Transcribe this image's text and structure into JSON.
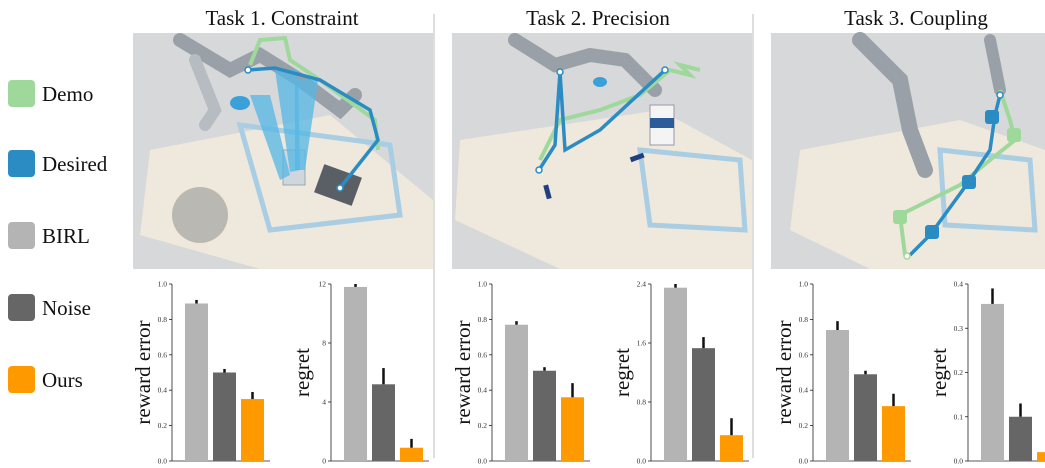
{
  "legend": {
    "items": [
      {
        "label": "Demo",
        "color": "#9fd89b"
      },
      {
        "label": "Desired",
        "color": "#2b8cc4"
      },
      {
        "label": "BIRL",
        "color": "#b4b4b4"
      },
      {
        "label": "Noise",
        "color": "#666666"
      },
      {
        "label": "Ours",
        "color": "#ff9900"
      }
    ]
  },
  "tasks": [
    {
      "title": "Task 1. Constraint",
      "photo_icon": "robot-arm-photo-icon"
    },
    {
      "title": "Task 2. Precision",
      "photo_icon": "robot-arm-photo-icon"
    },
    {
      "title": "Task 3. Coupling",
      "photo_icon": "robot-arm-photo-icon"
    }
  ],
  "chart_data": [
    {
      "type": "bar",
      "task": "Task 1. Constraint",
      "ylabel": "reward error",
      "categories": [
        "BIRL",
        "Noise",
        "Ours"
      ],
      "values": [
        0.89,
        0.5,
        0.35
      ],
      "errors": [
        0.02,
        0.02,
        0.04
      ],
      "ylim": [
        0,
        1.0
      ],
      "ticks": [
        0.0,
        0.2,
        0.4,
        0.6,
        0.8,
        1.0
      ],
      "tick_labels": [
        "0.0",
        "0.2",
        "0.4",
        "0.6",
        "0.8",
        "1.0"
      ]
    },
    {
      "type": "bar",
      "task": "Task 1. Constraint",
      "ylabel": "regret",
      "categories": [
        "BIRL",
        "Noise",
        "Ours"
      ],
      "values": [
        11.8,
        5.2,
        0.9
      ],
      "errors": [
        0.2,
        1.1,
        0.6
      ],
      "ylim": [
        0,
        12
      ],
      "ticks": [
        0,
        4,
        8,
        12
      ],
      "tick_labels": [
        "0",
        "4",
        "8",
        "12"
      ]
    },
    {
      "type": "bar",
      "task": "Task 2. Precision",
      "ylabel": "reward error",
      "categories": [
        "BIRL",
        "Noise",
        "Ours"
      ],
      "values": [
        0.77,
        0.51,
        0.36
      ],
      "errors": [
        0.02,
        0.02,
        0.08
      ],
      "ylim": [
        0,
        1.0
      ],
      "ticks": [
        0.0,
        0.2,
        0.4,
        0.6,
        0.8,
        1.0
      ],
      "tick_labels": [
        "0.0",
        "0.2",
        "0.4",
        "0.6",
        "0.8",
        "1.0"
      ]
    },
    {
      "type": "bar",
      "task": "Task 2. Precision",
      "ylabel": "regret",
      "categories": [
        "BIRL",
        "Noise",
        "Ours"
      ],
      "values": [
        2.35,
        1.53,
        0.35
      ],
      "errors": [
        0.05,
        0.15,
        0.23
      ],
      "ylim": [
        0,
        2.4
      ],
      "ticks": [
        0.0,
        0.8,
        1.6,
        2.4
      ],
      "tick_labels": [
        "0.0",
        "0.8",
        "1.6",
        "2.4"
      ]
    },
    {
      "type": "bar",
      "task": "Task 3. Coupling",
      "ylabel": "reward error",
      "categories": [
        "BIRL",
        "Noise",
        "Ours"
      ],
      "values": [
        0.74,
        0.49,
        0.31
      ],
      "errors": [
        0.05,
        0.02,
        0.07
      ],
      "ylim": [
        0,
        1.0
      ],
      "ticks": [
        0.0,
        0.2,
        0.4,
        0.6,
        0.8,
        1.0
      ],
      "tick_labels": [
        "0.0",
        "0.2",
        "0.4",
        "0.6",
        "0.8",
        "1.0"
      ]
    },
    {
      "type": "bar",
      "task": "Task 3. Coupling",
      "ylabel": "regret",
      "categories": [
        "BIRL",
        "Noise",
        "Ours"
      ],
      "values": [
        0.355,
        0.1,
        0.02
      ],
      "errors": [
        0.035,
        0.03,
        0.015
      ],
      "ylim": [
        0,
        0.4
      ],
      "ticks": [
        0.0,
        0.1,
        0.2,
        0.3,
        0.4
      ],
      "tick_labels": [
        "0.0",
        "0.1",
        "0.2",
        "0.3",
        "0.4"
      ]
    }
  ]
}
